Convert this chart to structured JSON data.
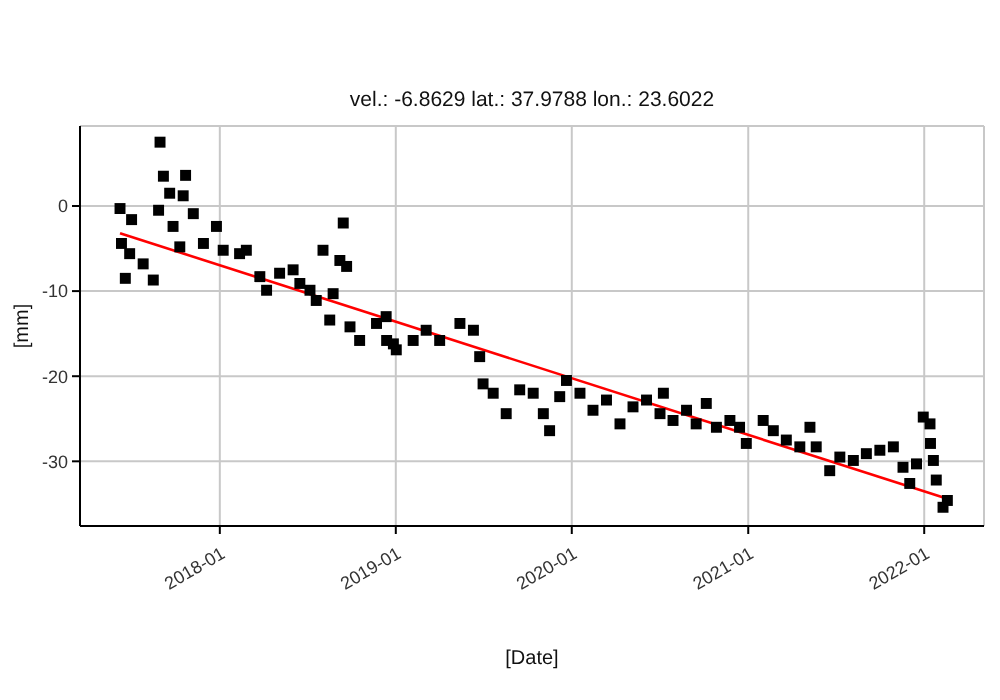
{
  "chart_data": {
    "type": "scatter",
    "title": "vel.: -6.8629 lat.: 37.9788 lon.: 23.6022",
    "xlabel": "[Date]",
    "ylabel": "[mm]",
    "xlim": [
      "2017-03-17",
      "2022-05-05"
    ],
    "xticks": [
      "2018-01",
      "2019-01",
      "2020-01",
      "2021-01",
      "2022-01"
    ],
    "ylim": [
      -37.6,
      9.4
    ],
    "yticks": [
      0,
      -10,
      -20,
      -30
    ],
    "grid": true,
    "legend": false,
    "series": [
      {
        "marker": "square",
        "color": "#000000",
        "x": [
          "2017-06-08",
          "2017-06-11",
          "2017-06-19",
          "2017-06-28",
          "2017-07-02",
          "2017-07-26",
          "2017-08-16",
          "2017-08-27",
          "2017-08-30",
          "2017-09-06",
          "2017-09-19",
          "2017-09-26",
          "2017-10-10",
          "2017-10-17",
          "2017-10-22",
          "2017-11-07",
          "2017-11-28",
          "2017-12-25",
          "2018-01-08",
          "2018-02-11",
          "2018-02-25",
          "2018-03-25",
          "2018-04-08",
          "2018-05-05",
          "2018-06-02",
          "2018-06-16",
          "2018-07-07",
          "2018-07-20",
          "2018-08-03",
          "2018-08-17",
          "2018-08-24",
          "2018-09-07",
          "2018-09-14",
          "2018-09-21",
          "2018-09-28",
          "2018-10-18",
          "2018-11-22",
          "2018-12-12",
          "2018-12-13",
          "2018-12-27",
          "2019-01-02",
          "2019-02-06",
          "2019-03-05",
          "2019-04-02",
          "2019-05-14",
          "2019-06-11",
          "2019-06-24",
          "2019-07-01",
          "2019-07-22",
          "2019-08-18",
          "2019-09-15",
          "2019-10-13",
          "2019-11-03",
          "2019-11-16",
          "2019-12-07",
          "2019-12-21",
          "2020-01-18",
          "2020-02-14",
          "2020-03-13",
          "2020-04-10",
          "2020-05-07",
          "2020-06-04",
          "2020-07-02",
          "2020-07-09",
          "2020-07-29",
          "2020-08-26",
          "2020-09-15",
          "2020-10-06",
          "2020-10-27",
          "2020-11-24",
          "2020-12-14",
          "2020-12-28",
          "2021-02-01",
          "2021-02-22",
          "2021-03-21",
          "2021-04-18",
          "2021-05-09",
          "2021-05-22",
          "2021-06-19",
          "2021-07-10",
          "2021-08-07",
          "2021-09-03",
          "2021-10-01",
          "2021-10-29",
          "2021-11-18",
          "2021-12-02",
          "2021-12-16",
          "2021-12-30",
          "2022-01-13",
          "2022-01-14",
          "2022-01-20",
          "2022-01-26",
          "2022-02-09",
          "2022-02-18"
        ],
        "values": [
          -0.3,
          -4.4,
          -8.5,
          -5.6,
          -1.6,
          -6.8,
          -8.7,
          -0.5,
          7.5,
          3.5,
          1.5,
          -2.4,
          -4.8,
          1.2,
          3.6,
          -0.9,
          -4.4,
          -2.4,
          -5.2,
          -5.6,
          -5.2,
          -8.3,
          -9.9,
          -7.9,
          -7.5,
          -9.1,
          -9.9,
          -11.1,
          -5.2,
          -13.4,
          -10.3,
          -6.4,
          -2.0,
          -7.1,
          -14.2,
          -15.8,
          -13.8,
          -13.0,
          -15.8,
          -16.2,
          -16.9,
          -15.8,
          -14.6,
          -15.8,
          -13.8,
          -14.6,
          -17.7,
          -20.9,
          -22.0,
          -24.4,
          -21.6,
          -22.0,
          -24.4,
          -26.4,
          -22.4,
          -20.5,
          -22.0,
          -24.0,
          -22.8,
          -25.6,
          -23.6,
          -22.8,
          -24.4,
          -22.0,
          -25.2,
          -24.0,
          -25.6,
          -23.2,
          -26.0,
          -25.2,
          -26.0,
          -27.9,
          -25.2,
          -26.4,
          -27.5,
          -28.3,
          -26.0,
          -28.3,
          -31.1,
          -29.5,
          -29.9,
          -29.1,
          -28.7,
          -28.3,
          -30.7,
          -32.6,
          -30.3,
          -24.8,
          -25.6,
          -27.9,
          -29.9,
          -32.2,
          -35.4,
          -34.6
        ]
      },
      {
        "type": "line",
        "marker": "none",
        "color": "#ff0000",
        "x": [
          "2017-06-08",
          "2022-02-18"
        ],
        "values": [
          -3.2,
          -34.4
        ]
      }
    ]
  }
}
